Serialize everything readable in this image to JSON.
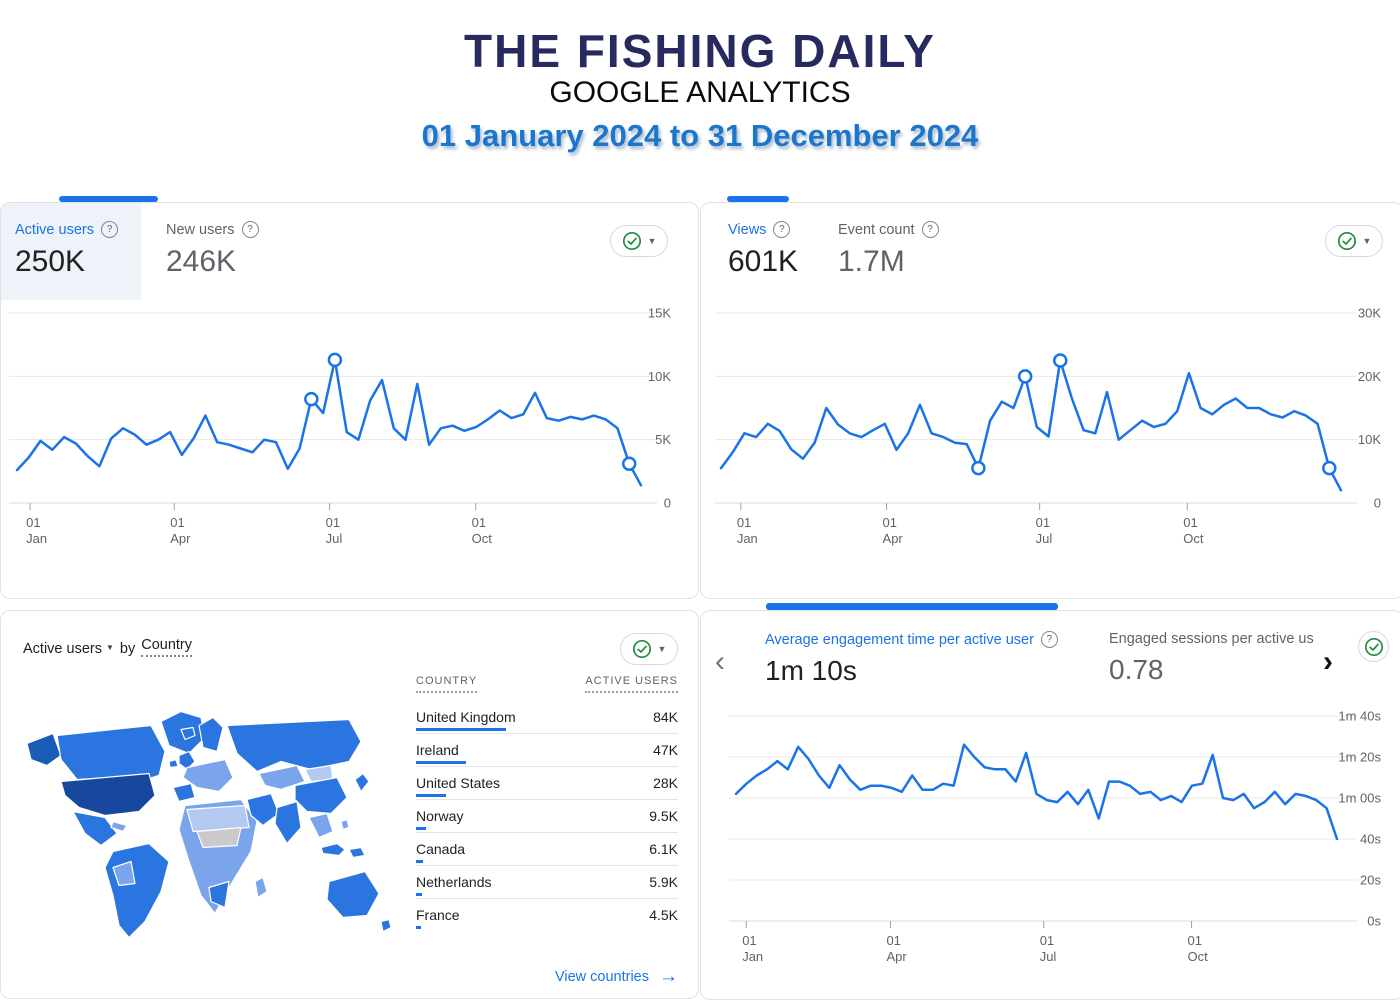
{
  "header": {
    "title": "THE FISHING DAILY",
    "subtitle": "GOOGLE ANALYTICS",
    "date_range": "01 January 2024 to 31 December 2024"
  },
  "colors": {
    "accent_blue": "#1a73e8",
    "title_navy": "#262a5e",
    "date_blue": "#1b76cc",
    "check_green": "#1e8e3e",
    "text_dark": "#202124",
    "text_gray": "#5f6368",
    "map_darkest": "#17489e",
    "map_primary": "#2a75e0",
    "map_light": "#7aa5ec",
    "map_lighter": "#b3c9f2",
    "map_gray": "#c9cac9"
  },
  "glyphs": {
    "help": "?",
    "caret_down": "▼",
    "chevron_left": "‹",
    "chevron_right": "›",
    "arrow_right": "→"
  },
  "panels": {
    "users": {
      "metrics": [
        {
          "label": "Active users",
          "value": "250K",
          "selected": true
        },
        {
          "label": "New users",
          "value": "246K",
          "selected": false
        }
      ]
    },
    "views": {
      "metrics": [
        {
          "label": "Views",
          "value": "601K",
          "selected": true
        },
        {
          "label": "Event count",
          "value": "1.7M",
          "selected": false
        }
      ]
    },
    "country": {
      "title_metric": "Active users",
      "title_by": "by",
      "title_dimension": "Country",
      "columns": [
        "COUNTRY",
        "ACTIVE USERS"
      ],
      "rows": [
        {
          "country": "United Kingdom",
          "active_users": "84K",
          "value": 84000
        },
        {
          "country": "Ireland",
          "active_users": "47K",
          "value": 47000
        },
        {
          "country": "United States",
          "active_users": "28K",
          "value": 28000
        },
        {
          "country": "Norway",
          "active_users": "9.5K",
          "value": 9500
        },
        {
          "country": "Canada",
          "active_users": "6.1K",
          "value": 6100
        },
        {
          "country": "Netherlands",
          "active_users": "5.9K",
          "value": 5900
        },
        {
          "country": "France",
          "active_users": "4.5K",
          "value": 4500
        }
      ],
      "link_label": "View countries"
    },
    "engagement": {
      "metrics": [
        {
          "label": "Average engagement time per active user",
          "value": "1m 10s",
          "selected": true
        },
        {
          "label": "Engaged sessions per active us",
          "value": "0.78",
          "selected": false
        }
      ]
    }
  },
  "chart_data": [
    {
      "key": "users_trend",
      "type": "line",
      "title": "Active users weekly trend",
      "ylim": [
        0,
        15000
      ],
      "yticks": [
        {
          "v": 15000,
          "label": "15K"
        },
        {
          "v": 10000,
          "label": "10K"
        },
        {
          "v": 5000,
          "label": "5K"
        },
        {
          "v": 0,
          "label": "0"
        }
      ],
      "xticks": [
        "01 Jan",
        "01 Apr",
        "01 Jul",
        "01 Oct"
      ],
      "grid": true,
      "legend": "none",
      "series": [
        {
          "name": "Active users",
          "values": [
            2600,
            3600,
            4900,
            4200,
            5200,
            4700,
            3700,
            2900,
            5100,
            5900,
            5400,
            4600,
            5000,
            5600,
            3800,
            5100,
            6900,
            4800,
            4600,
            4300,
            4000,
            5000,
            4800,
            2700,
            4300,
            8200,
            7100,
            11300,
            5600,
            5000,
            8100,
            9700,
            5900,
            5000,
            9400,
            4600,
            5900,
            6100,
            5700,
            6000,
            6600,
            7300,
            6700,
            7000,
            8700,
            6700,
            6500,
            6800,
            6600,
            6900,
            6600,
            5900,
            3100,
            1400
          ]
        }
      ],
      "marker_indices": [
        25,
        27,
        52
      ]
    },
    {
      "key": "views_trend",
      "type": "line",
      "title": "Views weekly trend",
      "ylim": [
        0,
        30000
      ],
      "yticks": [
        {
          "v": 30000,
          "label": "30K"
        },
        {
          "v": 20000,
          "label": "20K"
        },
        {
          "v": 10000,
          "label": "10K"
        },
        {
          "v": 0,
          "label": "0"
        }
      ],
      "xticks": [
        "01 Jan",
        "01 Apr",
        "01 Jul",
        "01 Oct"
      ],
      "grid": true,
      "legend": "none",
      "series": [
        {
          "name": "Views",
          "values": [
            5500,
            8000,
            11000,
            10400,
            12500,
            11400,
            8500,
            7000,
            9500,
            15000,
            12400,
            11000,
            10400,
            11500,
            12500,
            8400,
            11000,
            15500,
            11000,
            10400,
            9500,
            9300,
            5500,
            13000,
            16000,
            15000,
            20000,
            12000,
            10500,
            22500,
            16500,
            11500,
            11000,
            17500,
            10000,
            11500,
            13000,
            12000,
            12500,
            14500,
            20500,
            15000,
            14000,
            15500,
            16500,
            15000,
            15000,
            14000,
            13500,
            14500,
            13800,
            12500,
            5500,
            2000
          ]
        }
      ],
      "marker_indices": [
        22,
        26,
        29,
        52
      ]
    },
    {
      "key": "engagement_trend",
      "type": "line",
      "title": "Average engagement time per active user (seconds)",
      "ylim": [
        0,
        100
      ],
      "yticks": [
        {
          "v": 100,
          "label": "1m 40s"
        },
        {
          "v": 80,
          "label": "1m 20s"
        },
        {
          "v": 60,
          "label": "1m 00s"
        },
        {
          "v": 40,
          "label": "40s"
        },
        {
          "v": 20,
          "label": "20s"
        },
        {
          "v": 0,
          "label": "0s"
        }
      ],
      "xticks": [
        "01 Jan",
        "01 Apr",
        "01 Jul",
        "01 Oct"
      ],
      "grid": true,
      "legend": "none",
      "series": [
        {
          "name": "Average engagement time (s)",
          "values": [
            62,
            67,
            71,
            74,
            78,
            74,
            85,
            79,
            71,
            65,
            76,
            69,
            64,
            66,
            66,
            65,
            63,
            71,
            64,
            64,
            67,
            66,
            86,
            80,
            75,
            74,
            74,
            68,
            82,
            62,
            59,
            58,
            63,
            57,
            64,
            50,
            68,
            68,
            66,
            62,
            63,
            59,
            61,
            58,
            66,
            67,
            81,
            60,
            59,
            62,
            55,
            58,
            63,
            57,
            62,
            61,
            59,
            55,
            40
          ]
        }
      ],
      "marker_indices": []
    }
  ]
}
